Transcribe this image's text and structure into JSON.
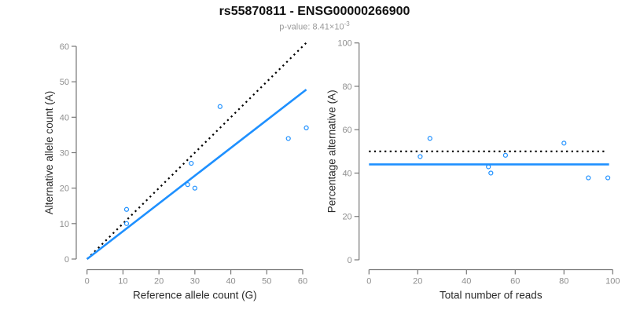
{
  "header": {
    "title": "rs55870811 - ENSG00000266900",
    "subtitle_base": "p-value: 8.41×10",
    "subtitle_exponent": "-3"
  },
  "colors": {
    "accent_blue": "#1E90FF",
    "dotted_black": "#000000",
    "axis_line": "#777777",
    "tick_label": "#8e8e8e",
    "axis_title": "#2b2b2b",
    "subtitle_gray": "#999999"
  },
  "chart_data": [
    {
      "type": "scatter",
      "xlabel": "Reference allele count (G)",
      "ylabel": "Alternative allele count (A)",
      "xlim": [
        0,
        60
      ],
      "ylim": [
        0,
        60
      ],
      "xticks": [
        0,
        10,
        20,
        30,
        40,
        50,
        60
      ],
      "yticks": [
        0,
        10,
        20,
        30,
        40,
        50,
        60
      ],
      "grid": false,
      "legend": "none",
      "point_style": "open-circle",
      "points": [
        [
          11,
          14
        ],
        [
          11,
          10
        ],
        [
          28,
          21
        ],
        [
          29,
          27
        ],
        [
          30,
          20
        ],
        [
          37,
          43
        ],
        [
          56,
          34
        ],
        [
          61,
          37
        ]
      ],
      "lines": [
        {
          "name": "identity-line",
          "style": "dotted",
          "color": "#000000",
          "x1": 0,
          "y1": 0,
          "x2": 61,
          "y2": 61
        },
        {
          "name": "regression-line",
          "style": "solid",
          "color": "#1E90FF",
          "x1": 0,
          "y1": 0,
          "x2": 61,
          "y2": 47.8
        }
      ]
    },
    {
      "type": "scatter",
      "xlabel": "Total number of reads",
      "ylabel": "Percentage alternative (A)",
      "xlim": [
        0,
        100
      ],
      "ylim": [
        0,
        100
      ],
      "xticks": [
        0,
        20,
        40,
        60,
        80,
        100
      ],
      "yticks": [
        0,
        20,
        40,
        60,
        80,
        100
      ],
      "grid": false,
      "legend": "none",
      "point_style": "open-circle",
      "points": [
        [
          21,
          47.6
        ],
        [
          25,
          56
        ],
        [
          49,
          42.9
        ],
        [
          50,
          40
        ],
        [
          56,
          48.2
        ],
        [
          80,
          53.8
        ],
        [
          90,
          37.8
        ],
        [
          98,
          37.8
        ]
      ],
      "lines": [
        {
          "name": "expected-50-percent-line",
          "style": "dotted",
          "color": "#000000",
          "x1": 0,
          "y1": 50,
          "x2": 96.5,
          "y2": 50
        },
        {
          "name": "mean-percentage-line",
          "style": "solid",
          "color": "#1E90FF",
          "x1": 0,
          "y1": 44,
          "x2": 98.5,
          "y2": 44
        }
      ]
    }
  ]
}
